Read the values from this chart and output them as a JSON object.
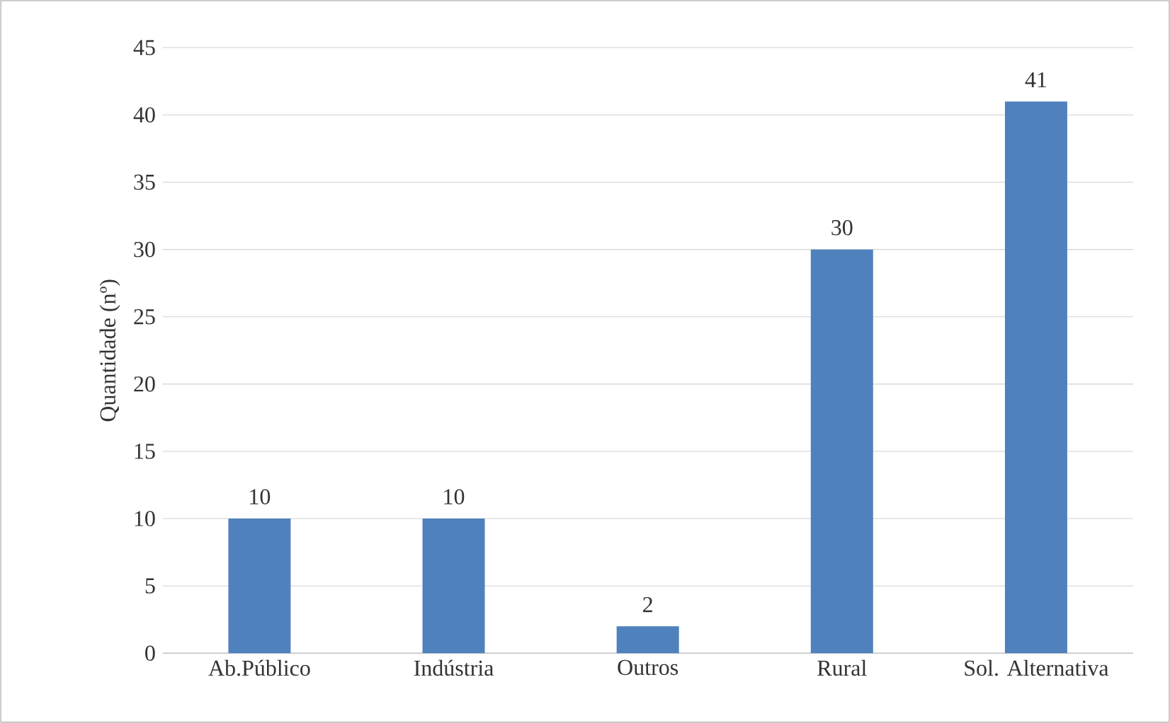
{
  "chart_data": {
    "type": "bar",
    "ylabel": "Quantidade (nº)",
    "categories": [
      "Ab.Público",
      "Indústria",
      "Outros",
      "Rural",
      "Sol. Alternativa"
    ],
    "values": [
      10,
      10,
      2,
      30,
      41
    ],
    "color": "#4f81bd",
    "ylim": [
      0,
      45
    ],
    "yticks": [
      0,
      5,
      10,
      15,
      20,
      25,
      30,
      35,
      40,
      45
    ],
    "grid": "y",
    "data_labels": true
  }
}
